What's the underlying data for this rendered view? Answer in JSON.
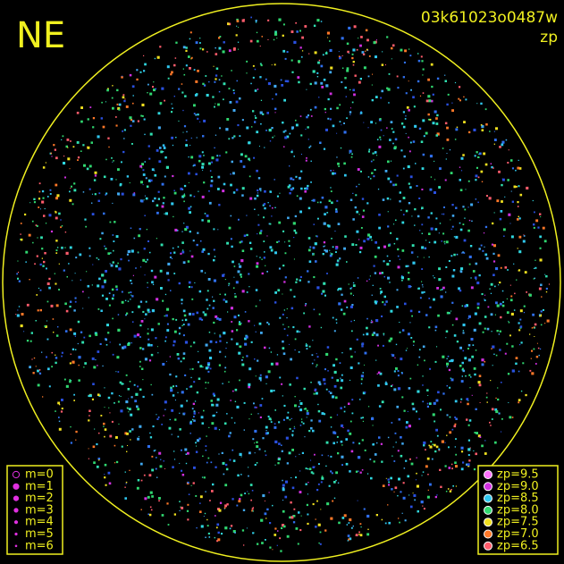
{
  "header": {
    "station": "NE",
    "id": "03k61023o0487w",
    "mode": "zp"
  },
  "legend_m": {
    "items": [
      {
        "label": "m=0"
      },
      {
        "label": "m=1"
      },
      {
        "label": "m=2"
      },
      {
        "label": "m=3"
      },
      {
        "label": "m=4"
      },
      {
        "label": "m=5"
      },
      {
        "label": "m=6"
      }
    ]
  },
  "legend_zp": {
    "items": [
      {
        "label": "zp=9.5",
        "color": "#ff70ff"
      },
      {
        "label": "zp=9.0",
        "color": "#d030e0"
      },
      {
        "label": "zp=8.5",
        "color": "#30c8f0"
      },
      {
        "label": "zp=8.0",
        "color": "#30d870"
      },
      {
        "label": "zp=7.5",
        "color": "#f0e020"
      },
      {
        "label": "zp=7.0",
        "color": "#ff7828"
      },
      {
        "label": "zp=6.5",
        "color": "#ff5c6c"
      }
    ]
  }
}
